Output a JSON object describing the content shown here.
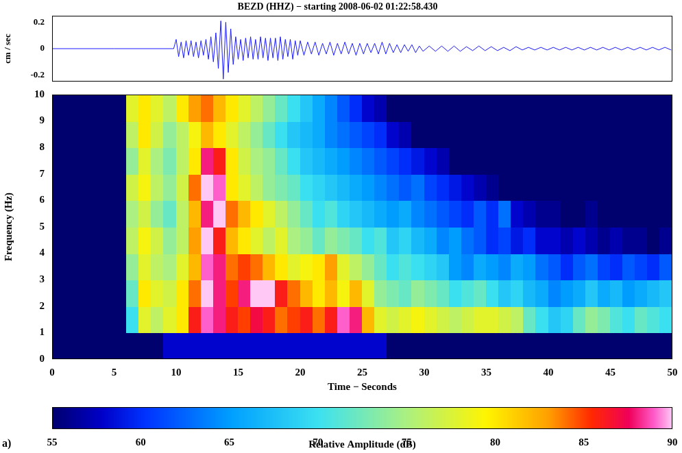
{
  "panel_label": "a)",
  "chart_data": [
    {
      "type": "line",
      "title": "BEZD (HHZ) − starting 2008-06-02 01:22:58.430",
      "y_label": "cm / sec",
      "x": [
        0,
        5,
        9.8,
        10,
        10.2,
        10.4,
        10.6,
        10.8,
        11,
        11.2,
        11.4,
        11.6,
        11.8,
        12,
        12.2,
        12.4,
        12.6,
        12.8,
        13,
        13.2,
        13.4,
        13.6,
        13.8,
        14,
        14.2,
        14.4,
        14.6,
        14.8,
        15,
        15.2,
        15.4,
        15.6,
        15.8,
        16,
        16.2,
        16.4,
        16.6,
        16.8,
        17,
        17.2,
        17.4,
        17.6,
        17.8,
        18,
        18.2,
        18.4,
        18.6,
        18.8,
        19,
        19.2,
        19.4,
        19.6,
        19.8,
        20,
        20.3,
        20.6,
        20.9,
        21.2,
        21.5,
        21.8,
        22.1,
        22.4,
        22.7,
        23,
        23.3,
        23.6,
        23.9,
        24.2,
        24.5,
        24.8,
        25.1,
        25.4,
        25.7,
        26,
        26.3,
        26.6,
        26.9,
        27.2,
        27.5,
        27.8,
        28.1,
        28.4,
        28.7,
        29,
        29.3,
        29.6,
        29.9,
        30.4,
        30.9,
        31.4,
        31.9,
        32.4,
        32.9,
        33.4,
        33.9,
        34.4,
        34.9,
        35.4,
        35.9,
        36.4,
        36.9,
        37.4,
        37.9,
        38.4,
        38.9,
        39.4,
        39.9,
        40.4,
        40.9,
        41.4,
        41.9,
        42.4,
        42.9,
        43.4,
        43.9,
        44.4,
        44.9,
        45.4,
        45.9,
        46.4,
        46.9,
        47.4,
        47.9,
        48.4,
        48.9,
        49.4,
        49.9
      ],
      "values": [
        0,
        0,
        0,
        0.07,
        -0.06,
        0.05,
        -0.07,
        0.06,
        -0.05,
        0.06,
        -0.06,
        0.05,
        -0.07,
        0.06,
        -0.05,
        0.07,
        -0.08,
        0.09,
        -0.1,
        0.12,
        -0.15,
        0.21,
        -0.23,
        0.2,
        -0.18,
        0.15,
        -0.12,
        0.09,
        -0.08,
        0.07,
        -0.09,
        0.08,
        -0.07,
        0.09,
        -0.08,
        0.07,
        -0.08,
        0.09,
        -0.07,
        0.08,
        -0.09,
        0.08,
        -0.07,
        0.08,
        -0.09,
        0.09,
        -0.08,
        0.07,
        -0.06,
        0.07,
        -0.08,
        0.06,
        -0.05,
        0.06,
        -0.05,
        0.05,
        -0.04,
        0.05,
        -0.05,
        0.04,
        -0.04,
        0.05,
        -0.05,
        0.04,
        -0.04,
        0.05,
        -0.04,
        0.04,
        -0.05,
        0.04,
        -0.04,
        0.04,
        -0.03,
        0.04,
        -0.04,
        0.05,
        -0.04,
        0.04,
        -0.03,
        0.03,
        -0.03,
        0.03,
        -0.02,
        0.03,
        -0.03,
        0.02,
        -0.02,
        0.02,
        -0.02,
        0.02,
        -0.02,
        0.02,
        -0.02,
        0.015,
        -0.015,
        0.02,
        -0.015,
        0.015,
        -0.015,
        0.01,
        -0.015,
        0.015,
        -0.01,
        0.01,
        -0.01,
        0.01,
        -0.01,
        0.01,
        -0.01,
        0.01,
        -0.01,
        0.01,
        -0.01,
        0.01,
        -0.01,
        0.01,
        -0.01,
        0.01,
        -0.01,
        0.01,
        -0.01,
        0.01,
        -0.01,
        0.01,
        -0.01,
        0.01,
        -0.01
      ],
      "color": "#1a1aff",
      "marker": "none",
      "line_style": "solid",
      "xlim": [
        0,
        50
      ],
      "ylim": [
        -0.25,
        0.25
      ],
      "yticks": [
        -0.2,
        0,
        0.2
      ],
      "grid": false,
      "tick_labels": "y"
    },
    {
      "type": "heatmap",
      "x_label": "Time − Seconds",
      "y_label": "Frequency (Hz)",
      "x_bins": [
        0,
        1,
        2,
        3,
        4,
        5,
        6,
        7,
        8,
        9,
        10,
        11,
        12,
        13,
        14,
        15,
        16,
        17,
        18,
        19,
        20,
        21,
        22,
        23,
        24,
        25,
        26,
        27,
        28,
        29,
        30,
        31,
        32,
        33,
        34,
        35,
        36,
        37,
        38,
        39,
        40,
        41,
        42,
        43,
        44,
        45,
        46,
        47,
        48,
        49,
        50
      ],
      "y_bins": [
        0,
        1,
        2,
        3,
        4,
        5,
        6,
        7,
        8,
        9,
        10
      ],
      "cells": [
        [
          55,
          55,
          55,
          55,
          55,
          55,
          55,
          55,
          55,
          58,
          58,
          58,
          58,
          58,
          58,
          58,
          58,
          58,
          58,
          58,
          58,
          58,
          58,
          58,
          58,
          58,
          58,
          55,
          55,
          55,
          55,
          55,
          55,
          55,
          55,
          55,
          55,
          55,
          55,
          55,
          55,
          55,
          55,
          55,
          55,
          55,
          55,
          55,
          55,
          55
        ],
        [
          55,
          55,
          55,
          55,
          55,
          55,
          70,
          78,
          76,
          78,
          80,
          86,
          89,
          88,
          86,
          85,
          87,
          86,
          84,
          85,
          86,
          84,
          86,
          89,
          88,
          82,
          78,
          77,
          78,
          79,
          78,
          77,
          76,
          77,
          78,
          78,
          77,
          76,
          72,
          70,
          68,
          69,
          72,
          74,
          73,
          71,
          70,
          72,
          71,
          70
        ],
        [
          55,
          55,
          55,
          55,
          55,
          55,
          72,
          80,
          78,
          77,
          80,
          84,
          90,
          88,
          85,
          88,
          90,
          90,
          86,
          84,
          82,
          80,
          82,
          79,
          82,
          78,
          74,
          73,
          72,
          74,
          73,
          72,
          70,
          71,
          72,
          70,
          68,
          69,
          67,
          66,
          64,
          65,
          66,
          68,
          66,
          67,
          65,
          66,
          67,
          68
        ],
        [
          55,
          55,
          55,
          55,
          55,
          55,
          74,
          78,
          76,
          75,
          78,
          82,
          89,
          88,
          84,
          85,
          84,
          82,
          80,
          78,
          79,
          80,
          83,
          78,
          76,
          74,
          72,
          70,
          71,
          70,
          69,
          68,
          65,
          64,
          66,
          65,
          64,
          66,
          65,
          63,
          62,
          60,
          62,
          63,
          61,
          60,
          62,
          61,
          60,
          62
        ],
        [
          55,
          55,
          55,
          55,
          55,
          55,
          76,
          79,
          77,
          74,
          76,
          83,
          90,
          86,
          82,
          80,
          78,
          76,
          78,
          75,
          74,
          72,
          74,
          73,
          72,
          70,
          71,
          68,
          69,
          67,
          66,
          64,
          65,
          63,
          62,
          60,
          61,
          59,
          60,
          58,
          58,
          57,
          58,
          57,
          56,
          57,
          56,
          56,
          55,
          56
        ],
        [
          55,
          55,
          55,
          55,
          55,
          55,
          75,
          77,
          74,
          72,
          76,
          82,
          88,
          90,
          84,
          82,
          80,
          78,
          76,
          74,
          72,
          70,
          71,
          69,
          68,
          67,
          66,
          65,
          66,
          64,
          63,
          62,
          61,
          60,
          62,
          60,
          63,
          58,
          57,
          56,
          56,
          55,
          55,
          56,
          55,
          55,
          55,
          55,
          55,
          55
        ],
        [
          55,
          55,
          55,
          55,
          55,
          55,
          77,
          79,
          76,
          74,
          77,
          84,
          90,
          89,
          80,
          78,
          76,
          74,
          73,
          72,
          70,
          69,
          68,
          67,
          66,
          65,
          64,
          63,
          62,
          63,
          61,
          60,
          59,
          58,
          57,
          56,
          55,
          55,
          55,
          55,
          55,
          55,
          55,
          55,
          55,
          55,
          55,
          55,
          55,
          55
        ],
        [
          55,
          55,
          55,
          55,
          55,
          55,
          74,
          78,
          75,
          73,
          76,
          80,
          88,
          86,
          80,
          77,
          75,
          74,
          72,
          70,
          68,
          67,
          66,
          65,
          64,
          63,
          62,
          61,
          60,
          59,
          58,
          57,
          55,
          55,
          55,
          55,
          55,
          55,
          55,
          55,
          55,
          55,
          55,
          55,
          55,
          55,
          55,
          55,
          55,
          55
        ],
        [
          55,
          55,
          55,
          55,
          55,
          55,
          76,
          80,
          77,
          74,
          76,
          79,
          82,
          80,
          78,
          76,
          74,
          72,
          70,
          68,
          67,
          66,
          64,
          63,
          62,
          61,
          60,
          58,
          57,
          55,
          55,
          55,
          55,
          55,
          55,
          55,
          55,
          55,
          55,
          55,
          55,
          55,
          55,
          55,
          55,
          55,
          55,
          55,
          55,
          55
        ],
        [
          55,
          55,
          55,
          55,
          55,
          55,
          78,
          80,
          78,
          76,
          80,
          83,
          84,
          82,
          80,
          78,
          76,
          74,
          72,
          70,
          68,
          66,
          64,
          62,
          60,
          58,
          57,
          55,
          55,
          55,
          55,
          55,
          55,
          55,
          55,
          55,
          55,
          55,
          55,
          55,
          55,
          55,
          55,
          55,
          55,
          55,
          55,
          55,
          55,
          55
        ]
      ],
      "xlim": [
        0,
        50
      ],
      "xticks": [
        0,
        5,
        10,
        15,
        20,
        25,
        30,
        35,
        40,
        45,
        50
      ],
      "ylim": [
        0,
        10
      ],
      "yticks": [
        0,
        1,
        2,
        3,
        4,
        5,
        6,
        7,
        8,
        9,
        10
      ],
      "grid": false,
      "colorbar_label": "Relative Amplitude (dB)",
      "colorbar_lim": [
        55,
        90
      ],
      "colorbar_ticks": [
        55,
        60,
        65,
        70,
        75,
        80,
        85,
        90
      ]
    }
  ]
}
